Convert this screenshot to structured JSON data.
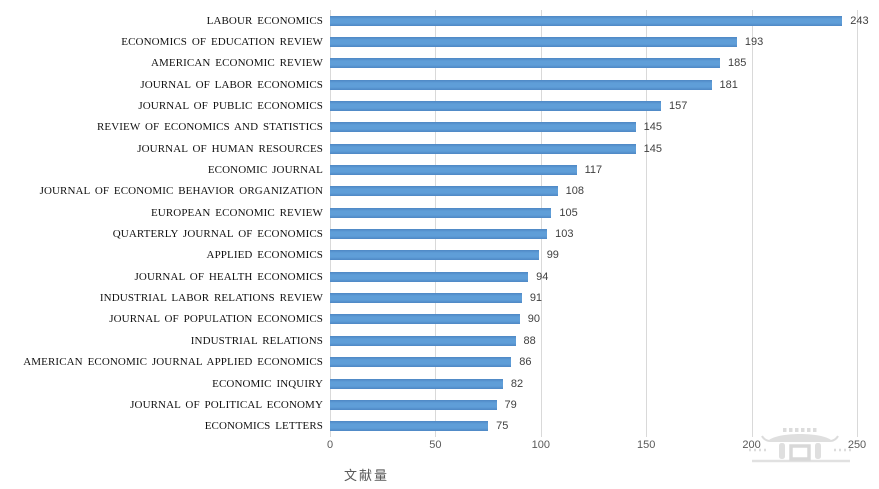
{
  "chart_data": {
    "type": "bar",
    "orientation": "horizontal",
    "title": "",
    "xlabel": "文献量",
    "ylabel": "",
    "categories": [
      "LABOUR ECONOMICS",
      "ECONOMICS OF EDUCATION REVIEW",
      "AMERICAN ECONOMIC REVIEW",
      "JOURNAL OF LABOR ECONOMICS",
      "JOURNAL OF PUBLIC ECONOMICS",
      "REVIEW OF ECONOMICS AND STATISTICS",
      "JOURNAL OF HUMAN RESOURCES",
      "ECONOMIC JOURNAL",
      "JOURNAL OF ECONOMIC BEHAVIOR ORGANIZATION",
      "EUROPEAN ECONOMIC REVIEW",
      "QUARTERLY JOURNAL OF ECONOMICS",
      "APPLIED ECONOMICS",
      "JOURNAL OF HEALTH ECONOMICS",
      "INDUSTRIAL LABOR RELATIONS REVIEW",
      "JOURNAL OF POPULATION ECONOMICS",
      "INDUSTRIAL RELATIONS",
      "AMERICAN ECONOMIC JOURNAL APPLIED ECONOMICS",
      "ECONOMIC INQUIRY",
      "JOURNAL OF POLITICAL ECONOMY",
      "ECONOMICS LETTERS"
    ],
    "values": [
      243,
      193,
      185,
      181,
      157,
      145,
      145,
      117,
      108,
      105,
      103,
      99,
      94,
      91,
      90,
      88,
      86,
      82,
      79,
      75
    ],
    "xlim": [
      0,
      250
    ],
    "x_ticks": [
      0,
      50,
      100,
      150,
      200,
      250
    ],
    "grid": "vertical gridlines on",
    "legend": "none",
    "data_labels": "shown at bar end"
  },
  "colors": {
    "bar": "#5b9bd5",
    "gridline": "#d9d9d9",
    "value_label": "#404040",
    "tick_label": "#595959",
    "category_label": "#111111",
    "watermark": "#d9d9d9"
  },
  "icons": {
    "watermark_icon": "chinese-pavilion-watermark"
  }
}
